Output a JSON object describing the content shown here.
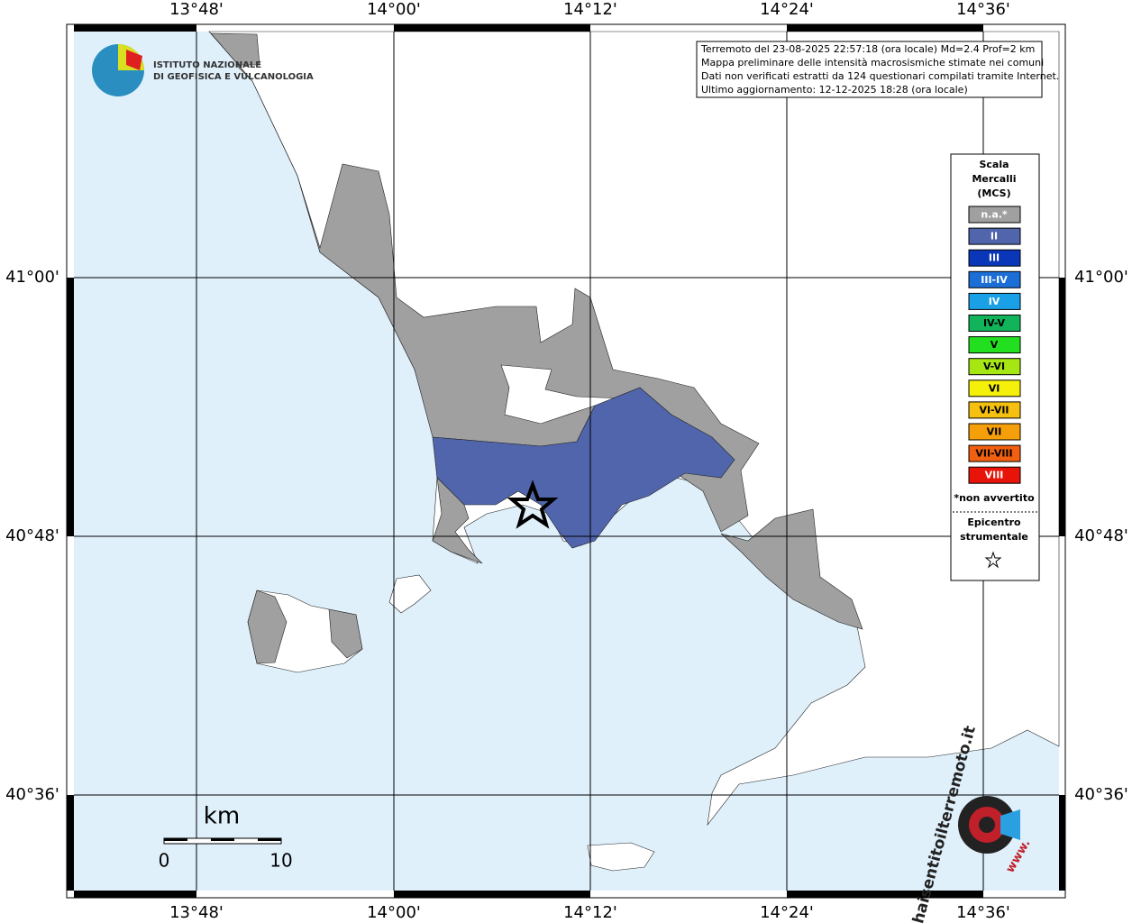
{
  "map": {
    "lon_labels": [
      "13°48'",
      "14°00'",
      "14°12'",
      "14°24'",
      "14°36'"
    ],
    "lat_labels": [
      "41°00'",
      "40°48'",
      "40°36'"
    ],
    "info": [
      "Terremoto del 23-08-2025 22:57:18 (ora locale) Md=2.4 Prof=2 km",
      "Mappa preliminare delle intensità macrosismiche stimate nei comuni",
      "Dati non verificati estratti da 124 questionari compilati tramite Internet.",
      "Ultimo aggiornamento: 12-12-2025 18:28 (ora locale)"
    ],
    "logo": [
      "ISTITUTO NAZIONALE",
      "DI GEOFISICA E VULCANOLOGIA"
    ],
    "legend": {
      "title": [
        "Scala",
        "Mercalli",
        "(MCS)"
      ],
      "items": [
        {
          "label": "n.a.*",
          "color": "#a0a0a0",
          "text_color": "#ffffff"
        },
        {
          "label": "II",
          "color": "#5065ab",
          "text_color": "#ffffff"
        },
        {
          "label": "III",
          "color": "#0a37b8",
          "text_color": "#ffffff"
        },
        {
          "label": "III-IV",
          "color": "#1a6ed6",
          "text_color": "#ffffff"
        },
        {
          "label": "IV",
          "color": "#1aa0e6",
          "text_color": "#ffffff"
        },
        {
          "label": "IV-V",
          "color": "#11b45a",
          "text_color": "#000000"
        },
        {
          "label": "V",
          "color": "#22e01f",
          "text_color": "#000000"
        },
        {
          "label": "V-VI",
          "color": "#a6e612",
          "text_color": "#000000"
        },
        {
          "label": "VI",
          "color": "#f5f00a",
          "text_color": "#000000"
        },
        {
          "label": "VI-VII",
          "color": "#f5c010",
          "text_color": "#000000"
        },
        {
          "label": "VII",
          "color": "#f5a00a",
          "text_color": "#000000"
        },
        {
          "label": "VII-VIII",
          "color": "#f06010",
          "text_color": "#000000"
        },
        {
          "label": "VIII",
          "color": "#e8140a",
          "text_color": "#ffffff"
        }
      ],
      "footnote": "*non avvertito",
      "epicenter": [
        "Epicentro",
        "strumentale"
      ]
    },
    "scale": {
      "unit": "km",
      "start": "0",
      "end": "10"
    },
    "site_logo": {
      "name": "haisentitoilterremoto.it",
      "prefix": "www."
    }
  }
}
